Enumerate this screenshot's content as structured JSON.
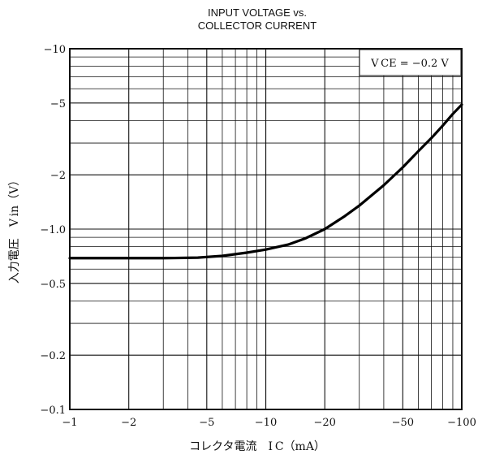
{
  "chart_data": {
    "type": "line",
    "title_line1": "INPUT VOLTAGE vs.",
    "title_line2": "COLLECTOR CURRENT",
    "annotation": "V CE = −0.2 V",
    "xlabel": "コレクタ電流　I C（mA）",
    "ylabel": "入力電圧　V in（V）",
    "x_scale": "log",
    "y_scale": "log",
    "xlim": [
      1,
      100
    ],
    "ylim": [
      0.1,
      10
    ],
    "x_ticks": [
      {
        "value": 1,
        "label": "−1"
      },
      {
        "value": 2,
        "label": "−2"
      },
      {
        "value": 5,
        "label": "−5"
      },
      {
        "value": 10,
        "label": "−10"
      },
      {
        "value": 20,
        "label": "−20"
      },
      {
        "value": 50,
        "label": "−50"
      },
      {
        "value": 100,
        "label": "−100"
      }
    ],
    "y_ticks": [
      {
        "value": 10,
        "label": "−10"
      },
      {
        "value": 5,
        "label": "−5"
      },
      {
        "value": 2,
        "label": "−2"
      },
      {
        "value": 1,
        "label": "−1.0"
      },
      {
        "value": 0.5,
        "label": "−0.5"
      },
      {
        "value": 0.2,
        "label": "−0.2"
      },
      {
        "value": 0.1,
        "label": "−0.1"
      }
    ],
    "grid": true,
    "series": [
      {
        "x": [
          1,
          2,
          3,
          4.5,
          6,
          8,
          10,
          13,
          16,
          20,
          25,
          30,
          40,
          50,
          60,
          70,
          80,
          90,
          100
        ],
        "y": [
          0.69,
          0.69,
          0.69,
          0.695,
          0.71,
          0.74,
          0.77,
          0.82,
          0.89,
          1.0,
          1.17,
          1.35,
          1.75,
          2.2,
          2.7,
          3.2,
          3.75,
          4.35,
          4.9
        ]
      }
    ]
  }
}
